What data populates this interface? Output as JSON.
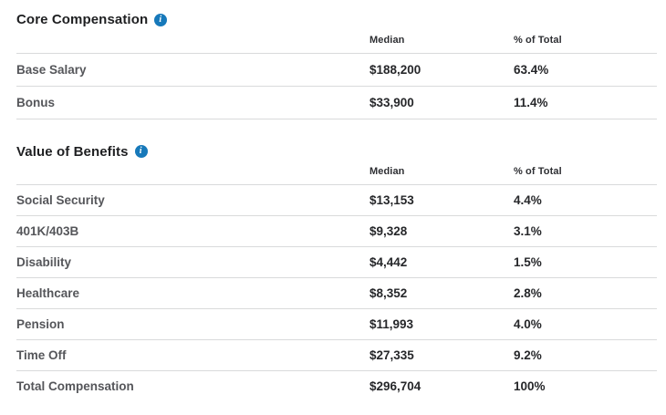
{
  "colors": {
    "accent_blue": "#1779ba",
    "divider": "#d9dadb",
    "heading_text": "#1e1f21",
    "label_text": "#55565a",
    "value_text": "#26272a",
    "background": "#ffffff"
  },
  "icons": {
    "info_glyph": "i",
    "info_name": "info-circle-icon"
  },
  "columns": {
    "median": "Median",
    "pct": "% of Total"
  },
  "sections": [
    {
      "title": "Core Compensation",
      "rows": [
        {
          "label": "Base Salary",
          "median": "$188,200",
          "pct": "63.4%"
        },
        {
          "label": "Bonus",
          "median": "$33,900",
          "pct": "11.4%"
        }
      ]
    },
    {
      "title": "Value of Benefits",
      "rows": [
        {
          "label": "Social Security",
          "median": "$13,153",
          "pct": "4.4%"
        },
        {
          "label": "401K/403B",
          "median": "$9,328",
          "pct": "3.1%"
        },
        {
          "label": "Disability",
          "median": "$4,442",
          "pct": "1.5%"
        },
        {
          "label": "Healthcare",
          "median": "$8,352",
          "pct": "2.8%"
        },
        {
          "label": "Pension",
          "median": "$11,993",
          "pct": "4.0%"
        },
        {
          "label": "Time Off",
          "median": "$27,335",
          "pct": "9.2%"
        },
        {
          "label": "Total Compensation",
          "median": "$296,704",
          "pct": "100%"
        }
      ]
    }
  ]
}
